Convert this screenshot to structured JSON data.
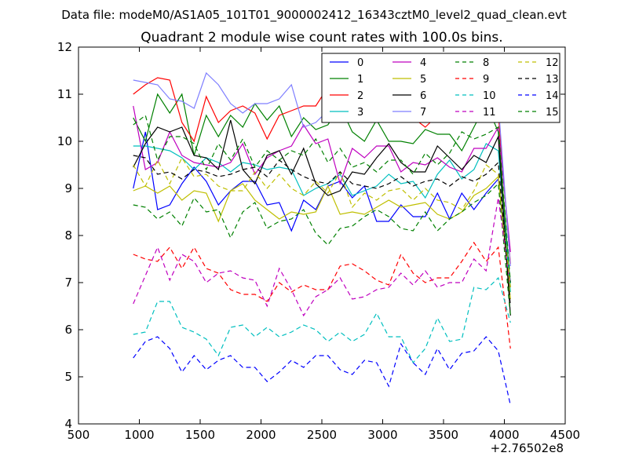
{
  "suptitle": "Data file: modeM0/AS1A05_101T01_9000002412_16343cztM0_level2_quad_clean.evt",
  "chart_data": {
    "type": "line",
    "title": "Quadrant 2 module wise count rates with 100.0s bins.",
    "xlabel": "",
    "ylabel": "",
    "x_offset_label": "+2.76502e8",
    "xlim": [
      500,
      4500
    ],
    "ylim": [
      4,
      12
    ],
    "x_ticks": [
      500,
      1000,
      1500,
      2000,
      2500,
      3000,
      3500,
      4000,
      4500
    ],
    "y_ticks": [
      4,
      5,
      6,
      7,
      8,
      9,
      10,
      11,
      12
    ],
    "grid": false,
    "legend_position": "top-right",
    "x": [
      950,
      1050,
      1150,
      1250,
      1350,
      1450,
      1550,
      1650,
      1750,
      1850,
      1950,
      2050,
      2150,
      2250,
      2350,
      2450,
      2550,
      2650,
      2750,
      2850,
      2950,
      3050,
      3150,
      3250,
      3350,
      3450,
      3550,
      3650,
      3750,
      3850,
      3950,
      4050
    ],
    "series": [
      {
        "name": "0",
        "color": "#0000ff",
        "style": "solid",
        "values": [
          9.0,
          10.2,
          8.55,
          8.65,
          9.1,
          9.45,
          9.15,
          8.65,
          8.95,
          9.15,
          9.15,
          8.65,
          8.7,
          8.1,
          8.75,
          8.55,
          9.05,
          9.15,
          8.8,
          9.05,
          8.3,
          8.3,
          8.65,
          8.4,
          8.4,
          8.9,
          8.35,
          8.9,
          8.55,
          8.9,
          9.2,
          7.0
        ]
      },
      {
        "name": "1",
        "color": "#008000",
        "style": "solid",
        "values": [
          10.5,
          10.0,
          11.0,
          10.6,
          11.0,
          9.7,
          10.55,
          10.1,
          10.55,
          10.3,
          10.8,
          10.45,
          10.75,
          10.1,
          10.5,
          10.25,
          10.35,
          10.75,
          10.2,
          10.0,
          10.45,
          10.0,
          10.0,
          9.95,
          10.25,
          10.15,
          10.15,
          9.8,
          10.3,
          10.8,
          10.2,
          6.9
        ]
      },
      {
        "name": "2",
        "color": "#ff0000",
        "style": "solid",
        "values": [
          11.0,
          11.2,
          11.35,
          11.3,
          10.4,
          10.0,
          10.95,
          10.4,
          10.65,
          10.75,
          10.6,
          10.05,
          10.55,
          10.65,
          10.75,
          10.75,
          11.15,
          11.25,
          11.0,
          10.8,
          10.9,
          11.0,
          10.95,
          10.5,
          10.3,
          10.55,
          10.6,
          10.5,
          10.85,
          10.65,
          10.6,
          7.4
        ]
      },
      {
        "name": "3",
        "color": "#00bfbf",
        "style": "solid",
        "values": [
          9.9,
          9.9,
          9.85,
          9.8,
          9.65,
          9.4,
          9.65,
          9.55,
          9.35,
          9.55,
          9.5,
          9.4,
          9.45,
          9.4,
          8.85,
          9.0,
          9.1,
          9.3,
          8.85,
          8.95,
          9.05,
          9.3,
          9.1,
          9.15,
          8.8,
          9.3,
          9.6,
          9.2,
          9.4,
          9.95,
          9.8,
          6.8
        ]
      },
      {
        "name": "4",
        "color": "#bf00bf",
        "style": "solid",
        "values": [
          10.75,
          9.4,
          9.55,
          10.2,
          9.7,
          9.55,
          9.5,
          9.45,
          9.55,
          9.95,
          9.3,
          9.65,
          9.8,
          9.9,
          10.35,
          9.95,
          10.05,
          9.1,
          9.85,
          9.65,
          9.9,
          9.9,
          9.35,
          9.55,
          9.5,
          9.65,
          9.45,
          9.35,
          9.85,
          9.85,
          10.3,
          7.65
        ]
      },
      {
        "name": "5",
        "color": "#bfbf00",
        "style": "solid",
        "values": [
          8.95,
          9.05,
          8.9,
          9.05,
          8.75,
          8.95,
          8.9,
          8.3,
          8.95,
          9.1,
          8.75,
          8.55,
          8.35,
          8.5,
          8.45,
          8.5,
          9.05,
          8.45,
          8.5,
          8.45,
          8.6,
          8.75,
          8.6,
          8.65,
          8.7,
          8.45,
          8.35,
          8.5,
          8.85,
          9.0,
          9.25,
          6.65
        ]
      },
      {
        "name": "6",
        "color": "#000000",
        "style": "solid",
        "values": [
          9.45,
          9.95,
          10.3,
          10.2,
          10.3,
          9.7,
          9.65,
          9.4,
          10.45,
          9.4,
          9.1,
          9.7,
          9.8,
          9.3,
          9.85,
          9.1,
          8.85,
          8.95,
          9.35,
          9.3,
          9.65,
          9.95,
          9.55,
          9.35,
          9.35,
          9.9,
          9.65,
          9.4,
          9.7,
          9.55,
          10.1,
          6.3
        ]
      },
      {
        "name": "7",
        "color": "#7f7fff",
        "style": "solid",
        "values": [
          11.3,
          11.25,
          11.2,
          10.9,
          10.85,
          10.7,
          11.45,
          11.2,
          10.8,
          10.6,
          10.8,
          10.8,
          10.9,
          11.2,
          10.3,
          10.4,
          10.65,
          10.95,
          10.95,
          11.0,
          10.9,
          11.05,
          11.15,
          10.75,
          10.65,
          10.85,
          10.55,
          10.75,
          11.15,
          11.75,
          10.8,
          7.35
        ]
      },
      {
        "name": "8",
        "color": "#008000",
        "style": "dashed",
        "values": [
          8.65,
          8.6,
          8.35,
          8.5,
          8.2,
          8.8,
          8.5,
          8.55,
          7.95,
          8.5,
          8.7,
          8.15,
          8.3,
          8.35,
          8.55,
          8.05,
          7.8,
          8.15,
          8.2,
          8.4,
          8.55,
          8.4,
          8.15,
          8.1,
          8.5,
          8.1,
          8.35,
          8.5,
          8.7,
          8.85,
          9.1,
          6.3
        ]
      },
      {
        "name": "9",
        "color": "#ff0000",
        "style": "dashed",
        "values": [
          7.6,
          7.5,
          7.45,
          7.75,
          7.3,
          7.75,
          7.3,
          7.2,
          6.85,
          6.75,
          6.75,
          6.6,
          7.0,
          6.8,
          6.95,
          6.85,
          6.85,
          7.35,
          7.4,
          7.25,
          7.05,
          6.95,
          7.6,
          7.2,
          7.0,
          7.1,
          7.1,
          7.45,
          7.85,
          7.45,
          7.75,
          5.6
        ]
      },
      {
        "name": "10",
        "color": "#00bfbf",
        "style": "dashed",
        "values": [
          5.9,
          5.95,
          6.6,
          6.6,
          6.05,
          5.95,
          5.8,
          5.45,
          6.05,
          6.1,
          5.85,
          6.05,
          5.85,
          5.95,
          6.1,
          6.0,
          5.75,
          5.95,
          5.75,
          5.9,
          6.35,
          5.85,
          5.85,
          5.3,
          5.6,
          6.25,
          5.75,
          5.8,
          6.9,
          6.85,
          7.1,
          6.15
        ]
      },
      {
        "name": "11",
        "color": "#bf00bf",
        "style": "dashed",
        "values": [
          6.55,
          7.15,
          7.75,
          7.05,
          7.6,
          7.45,
          7.0,
          7.2,
          7.25,
          7.1,
          7.05,
          6.5,
          7.3,
          6.85,
          6.3,
          6.7,
          6.85,
          7.1,
          6.65,
          6.7,
          6.85,
          6.9,
          7.2,
          6.95,
          7.25,
          6.9,
          7.0,
          7.0,
          7.5,
          7.25,
          8.8,
          6.9
        ]
      },
      {
        "name": "12",
        "color": "#bfbf00",
        "style": "dashed",
        "values": [
          9.5,
          9.05,
          9.6,
          9.1,
          9.65,
          9.25,
          9.3,
          9.05,
          8.95,
          8.95,
          9.35,
          9.0,
          9.3,
          9.0,
          8.85,
          9.15,
          8.9,
          9.35,
          8.6,
          8.9,
          8.75,
          8.95,
          9.0,
          8.75,
          9.0,
          8.75,
          8.7,
          8.55,
          8.95,
          9.5,
          9.3,
          6.9
        ]
      },
      {
        "name": "13",
        "color": "#000000",
        "style": "dashed",
        "values": [
          9.7,
          9.65,
          9.3,
          9.35,
          9.2,
          9.4,
          9.35,
          9.25,
          9.3,
          9.4,
          9.45,
          9.25,
          9.6,
          9.4,
          9.25,
          9.15,
          9.1,
          9.35,
          9.1,
          9.05,
          9.0,
          9.1,
          9.25,
          9.05,
          9.15,
          9.2,
          9.05,
          9.25,
          9.15,
          9.3,
          9.55,
          6.5
        ]
      },
      {
        "name": "14",
        "color": "#0000ff",
        "style": "dashed",
        "values": [
          5.4,
          5.75,
          5.85,
          5.6,
          5.1,
          5.45,
          5.15,
          5.35,
          5.45,
          5.2,
          5.2,
          4.9,
          5.1,
          5.35,
          5.2,
          5.45,
          5.45,
          5.15,
          5.05,
          5.35,
          5.3,
          4.8,
          5.7,
          5.3,
          5.05,
          5.6,
          5.15,
          5.5,
          5.55,
          5.85,
          5.55,
          4.4
        ]
      },
      {
        "name": "15",
        "color": "#008000",
        "style": "dashed",
        "values": [
          10.35,
          10.55,
          9.6,
          10.1,
          10.1,
          9.95,
          9.4,
          9.95,
          9.6,
          10.05,
          9.45,
          9.8,
          9.6,
          9.8,
          9.7,
          10.05,
          9.55,
          9.85,
          9.45,
          9.55,
          9.35,
          9.6,
          9.6,
          9.3,
          9.75,
          9.5,
          9.75,
          10.2,
          10.05,
          10.15,
          10.3,
          7.0
        ]
      }
    ]
  }
}
